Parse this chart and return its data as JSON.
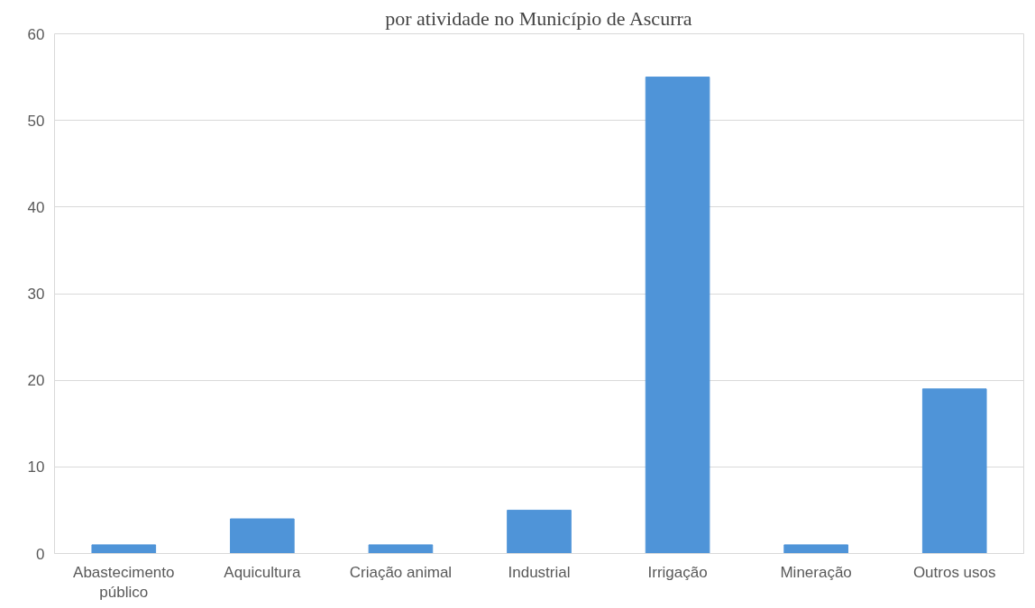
{
  "chart_data": {
    "type": "bar",
    "title": "por atividade no Município de Ascurra",
    "categories": [
      "Abastecimento\npúblico",
      "Aquicultura",
      "Criação animal",
      "Industrial",
      "Irrigação",
      "Mineração",
      "Outros usos"
    ],
    "values": [
      1,
      4,
      1,
      5,
      55,
      1,
      19
    ],
    "color": "#4f94d8",
    "ylim": [
      0,
      60
    ],
    "yticks": [
      0,
      10,
      20,
      30,
      40,
      50,
      60
    ],
    "grid": "y"
  }
}
